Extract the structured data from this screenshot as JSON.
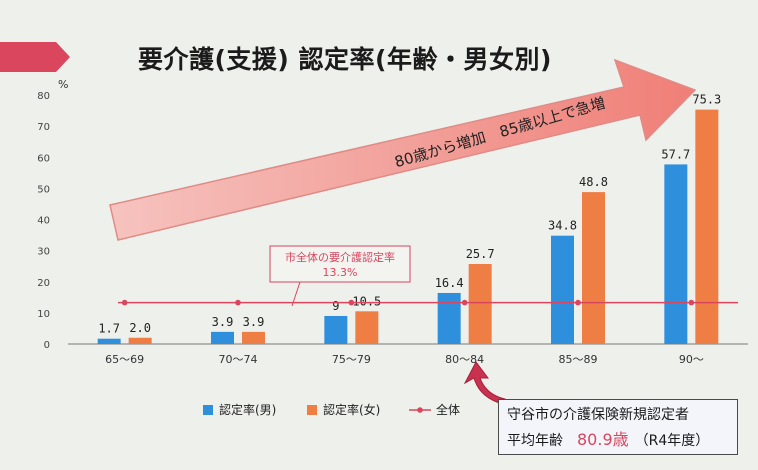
{
  "title": "要介護(支援) 認定率(年齢・男女別)",
  "annotation": {
    "arrow_text": "80歳から増加　85歳以上で急増",
    "overall_label": "市全体の要介護認定率",
    "overall_value": "13.3%"
  },
  "info_box": {
    "line1": "守谷市の介護保険新規認定者",
    "line2_label": "平均年齢",
    "line2_value": "80.9歳",
    "line2_note": "（R4年度）"
  },
  "colors": {
    "male": "#2e8fdd",
    "female": "#ef7e45",
    "overall": "#d9465e"
  },
  "chart_data": {
    "type": "bar",
    "title": "要介護(支援) 認定率(年齢・男女別)",
    "ylabel": "%",
    "ylim": [
      0,
      80
    ],
    "yticks": [
      0,
      10,
      20,
      30,
      40,
      50,
      60,
      70,
      80
    ],
    "categories": [
      "65～69",
      "70～74",
      "75～79",
      "80～84",
      "85～89",
      "90～"
    ],
    "series": [
      {
        "name": "認定率(男)",
        "values": [
          1.7,
          3.9,
          9,
          16.4,
          34.8,
          57.7
        ],
        "labels": [
          "1.7",
          "3.9",
          "9",
          "16.4",
          "34.8",
          "57.7"
        ]
      },
      {
        "name": "認定率(女)",
        "values": [
          2.0,
          3.9,
          10.5,
          25.7,
          48.8,
          75.3
        ],
        "labels": [
          "2.0",
          "3.9",
          "10.5",
          "25.7",
          "48.8",
          "75.3"
        ]
      },
      {
        "name": "全体",
        "values": [
          13.3,
          13.3,
          13.3,
          13.3,
          13.3,
          13.3
        ]
      }
    ],
    "grid": false,
    "legend": "bottom"
  }
}
